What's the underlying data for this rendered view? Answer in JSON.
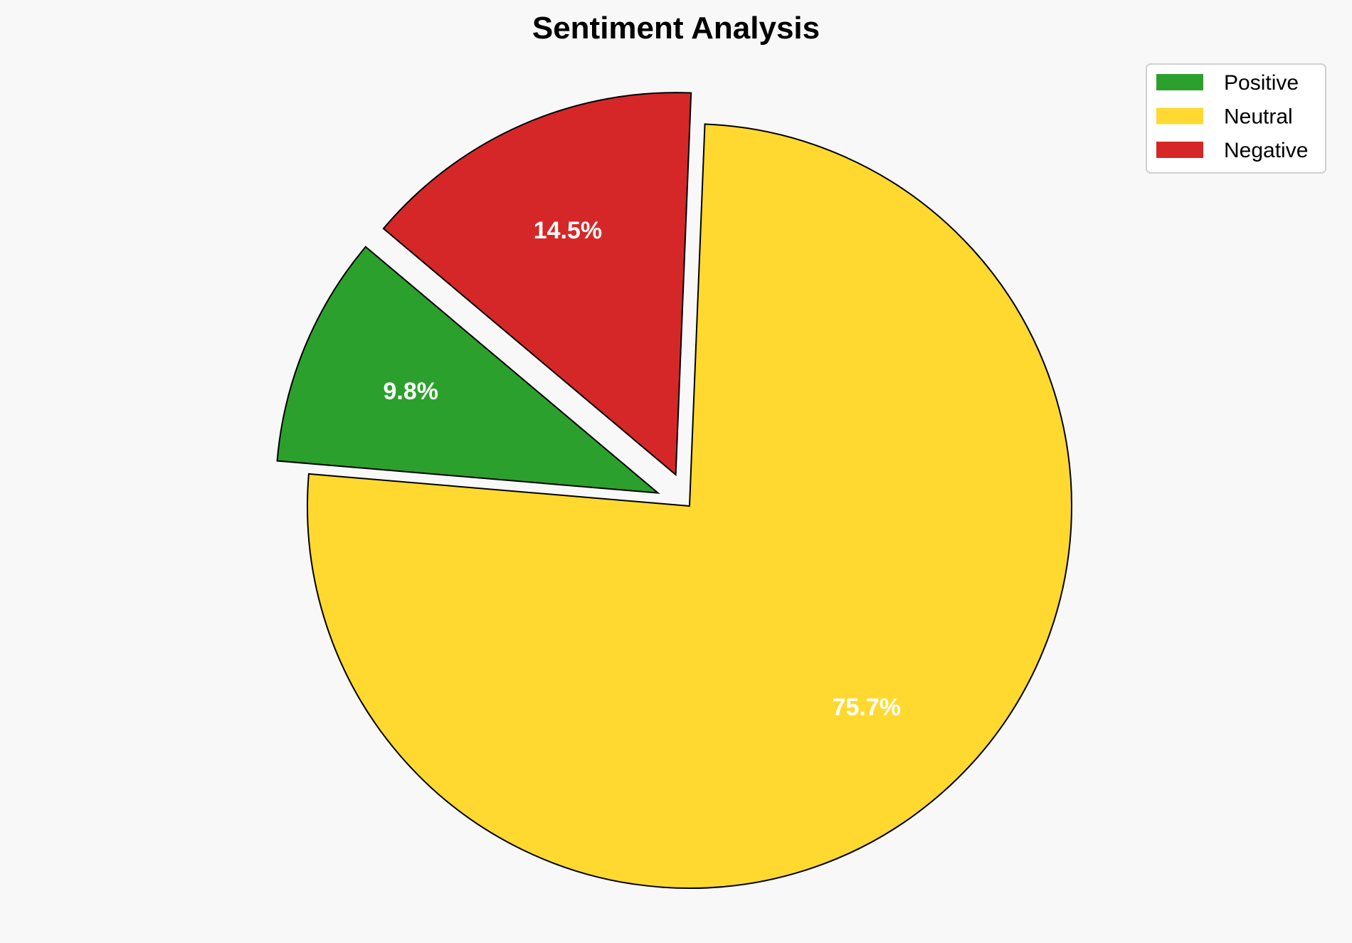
{
  "chart_data": {
    "type": "pie",
    "title": "Sentiment Analysis",
    "categories": [
      "Positive",
      "Neutral",
      "Negative"
    ],
    "values": [
      9.8,
      75.7,
      14.5
    ],
    "labels": [
      "9.8%",
      "75.7%",
      "14.5%"
    ],
    "colors": [
      "#2ca02c",
      "#ffd92f",
      "#d62728"
    ],
    "exploded": [
      "Positive",
      "Negative"
    ],
    "legend_position": "top-right"
  }
}
